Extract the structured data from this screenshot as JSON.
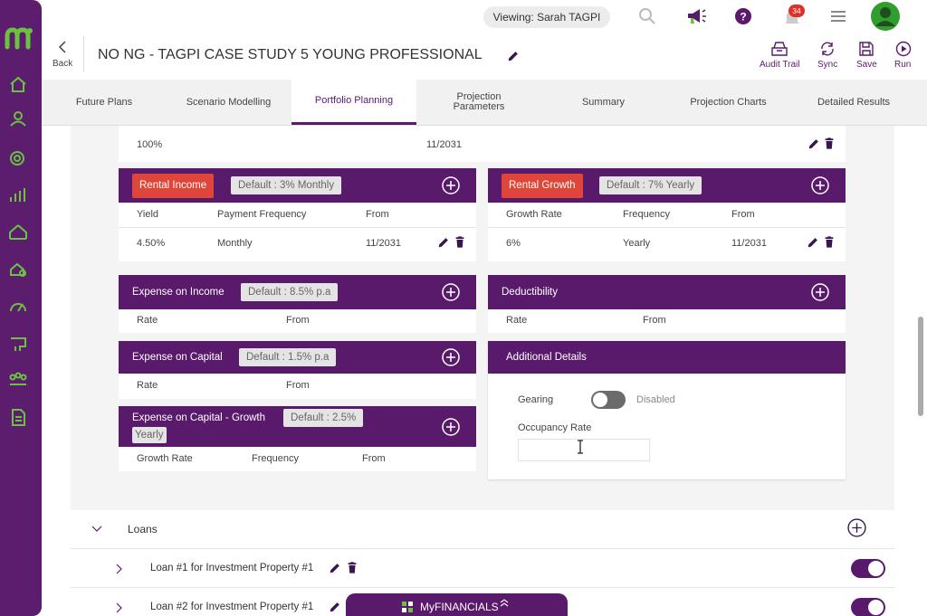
{
  "topbar": {
    "viewing": "Viewing: Sarah TAGPI",
    "notifications": "34"
  },
  "header": {
    "back": "Back",
    "title": "NO NG - TAGPI CASE STUDY 5 YOUNG PROFESSIONAL",
    "actions": [
      "Audit Trail",
      "Sync",
      "Save",
      "Run"
    ]
  },
  "tabs": [
    "Future Plans",
    "Scenario Modelling",
    "Portfolio Planning",
    "Projection Parameters",
    "Summary",
    "Projection Charts",
    "Detailed Results"
  ],
  "top_row": [
    "100%",
    "11/2031"
  ],
  "rental_income": {
    "title": "Rental Income",
    "default": "Default : 3% Monthly",
    "columns": [
      "Yield",
      "Payment Frequency",
      "From"
    ],
    "rows": [
      [
        "4.50%",
        "Monthly",
        "11/2031"
      ]
    ]
  },
  "rental_growth": {
    "title": "Rental Growth",
    "default": "Default : 7% Yearly",
    "columns": [
      "Growth Rate",
      "Frequency",
      "From"
    ],
    "rows": [
      [
        "6%",
        "Yearly",
        "11/2031"
      ]
    ]
  },
  "expense_on_income": {
    "title": "Expense on Income",
    "default": "Default : 8.5% p.a",
    "columns": [
      "Rate",
      "From"
    ]
  },
  "deductibility": {
    "title": "Deductibility",
    "columns": [
      "Rate",
      "From"
    ]
  },
  "expense_on_capital": {
    "title": "Expense on Capital",
    "default": "Default : 1.5% p.a",
    "columns": [
      "Rate",
      "From"
    ]
  },
  "expense_on_capital_growth": {
    "title": "Expense on Capital - Growth",
    "default": [
      "Default : 2.5%",
      "Yearly"
    ],
    "columns": [
      "Growth Rate",
      "Frequency",
      "From"
    ]
  },
  "additional_details": {
    "title": "Additional Details",
    "gearing": "Gearing",
    "gearing_state": "Disabled",
    "occupancy_rate": "Occupancy Rate"
  },
  "loans": {
    "title": "Loans",
    "items": [
      "Loan #1 for Investment Property #1",
      "Loan #2 for Investment Property #1"
    ]
  },
  "footer": {
    "label": "MyFINANCIALS"
  }
}
